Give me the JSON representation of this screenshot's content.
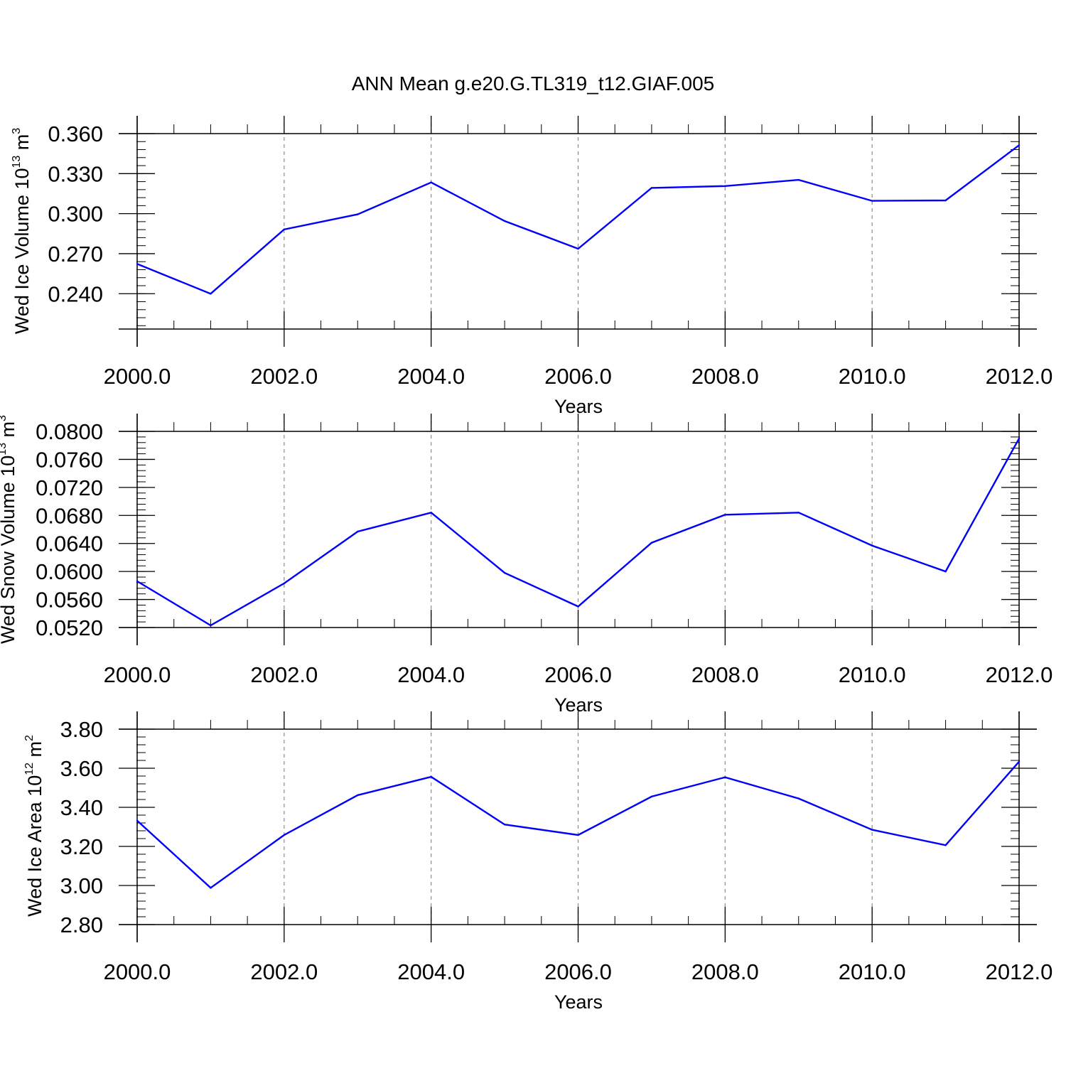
{
  "title": "ANN Mean g.e20.G.TL319_t12.GIAF.005",
  "colors": {
    "line": "#0000ff",
    "axis": "#000000",
    "grid": "#8c8c8c"
  },
  "chart_data": [
    {
      "type": "line",
      "ylabel": {
        "text": "Wed Ice Volume 10",
        "sup": "13",
        "unit": " m",
        "unit_sup": "3"
      },
      "xlabel": "Years",
      "xlim": [
        2000,
        2012
      ],
      "ylim": [
        0.2135,
        0.36
      ],
      "yticks": [
        "0.240",
        "0.270",
        "0.300",
        "0.330",
        "0.360"
      ],
      "yticks_values": [
        0.24,
        0.27,
        0.3,
        0.33,
        0.36
      ],
      "yminor_step": 0.006,
      "xticks": [
        "2000.0",
        "2002.0",
        "2004.0",
        "2006.0",
        "2008.0",
        "2010.0",
        "2012.0"
      ],
      "xticks_values": [
        2000,
        2002,
        2004,
        2006,
        2008,
        2010,
        2012
      ],
      "x": [
        2000,
        2001,
        2002,
        2003,
        2004,
        2005,
        2006,
        2007,
        2008,
        2009,
        2010,
        2011,
        2012
      ],
      "y": [
        0.2623,
        0.24,
        0.2882,
        0.2995,
        0.3234,
        0.2945,
        0.2737,
        0.3193,
        0.3207,
        0.3253,
        0.3096,
        0.3099,
        0.3513
      ],
      "grid": "vertical dashed at major x ticks"
    },
    {
      "type": "line",
      "ylabel": {
        "text": "Wed Snow Volume 10",
        "sup": "13",
        "unit": " m",
        "unit_sup": "3"
      },
      "xlabel": "Years",
      "xlim": [
        2000,
        2012
      ],
      "ylim": [
        0.052,
        0.08
      ],
      "yticks": [
        "0.0520",
        "0.0560",
        "0.0600",
        "0.0640",
        "0.0680",
        "0.0720",
        "0.0760",
        "0.0800"
      ],
      "yticks_values": [
        0.052,
        0.056,
        0.06,
        0.064,
        0.068,
        0.072,
        0.076,
        0.08
      ],
      "yminor_step": 0.0008,
      "xticks": [
        "2000.0",
        "2002.0",
        "2004.0",
        "2006.0",
        "2008.0",
        "2010.0",
        "2012.0"
      ],
      "xticks_values": [
        2000,
        2002,
        2004,
        2006,
        2008,
        2010,
        2012
      ],
      "x": [
        2000,
        2001,
        2002,
        2003,
        2004,
        2005,
        2006,
        2007,
        2008,
        2009,
        2010,
        2011,
        2012
      ],
      "y": [
        0.0586,
        0.0523,
        0.0583,
        0.0657,
        0.0684,
        0.0598,
        0.055,
        0.0641,
        0.0681,
        0.0684,
        0.0637,
        0.06,
        0.079
      ],
      "grid": "vertical dashed at major x ticks"
    },
    {
      "type": "line",
      "ylabel": {
        "text": "Wed Ice Area 10",
        "sup": "12",
        "unit": " m",
        "unit_sup": "2"
      },
      "xlabel": "Years",
      "xlim": [
        2000,
        2012
      ],
      "ylim": [
        2.8,
        3.8
      ],
      "yticks": [
        "2.80",
        "3.00",
        "3.20",
        "3.40",
        "3.60",
        "3.80"
      ],
      "yticks_values": [
        2.8,
        3.0,
        3.2,
        3.4,
        3.6,
        3.8
      ],
      "yminor_step": 0.04,
      "xticks": [
        "2000.0",
        "2002.0",
        "2004.0",
        "2006.0",
        "2008.0",
        "2010.0",
        "2012.0"
      ],
      "xticks_values": [
        2000,
        2002,
        2004,
        2006,
        2008,
        2010,
        2012
      ],
      "x": [
        2000,
        2001,
        2002,
        2003,
        2004,
        2005,
        2006,
        2007,
        2008,
        2009,
        2010,
        2011,
        2012
      ],
      "y": [
        3.332,
        2.988,
        3.258,
        3.462,
        3.556,
        3.312,
        3.258,
        3.455,
        3.554,
        3.445,
        3.285,
        3.206,
        3.634
      ],
      "grid": "vertical dashed at major x ticks"
    }
  ]
}
